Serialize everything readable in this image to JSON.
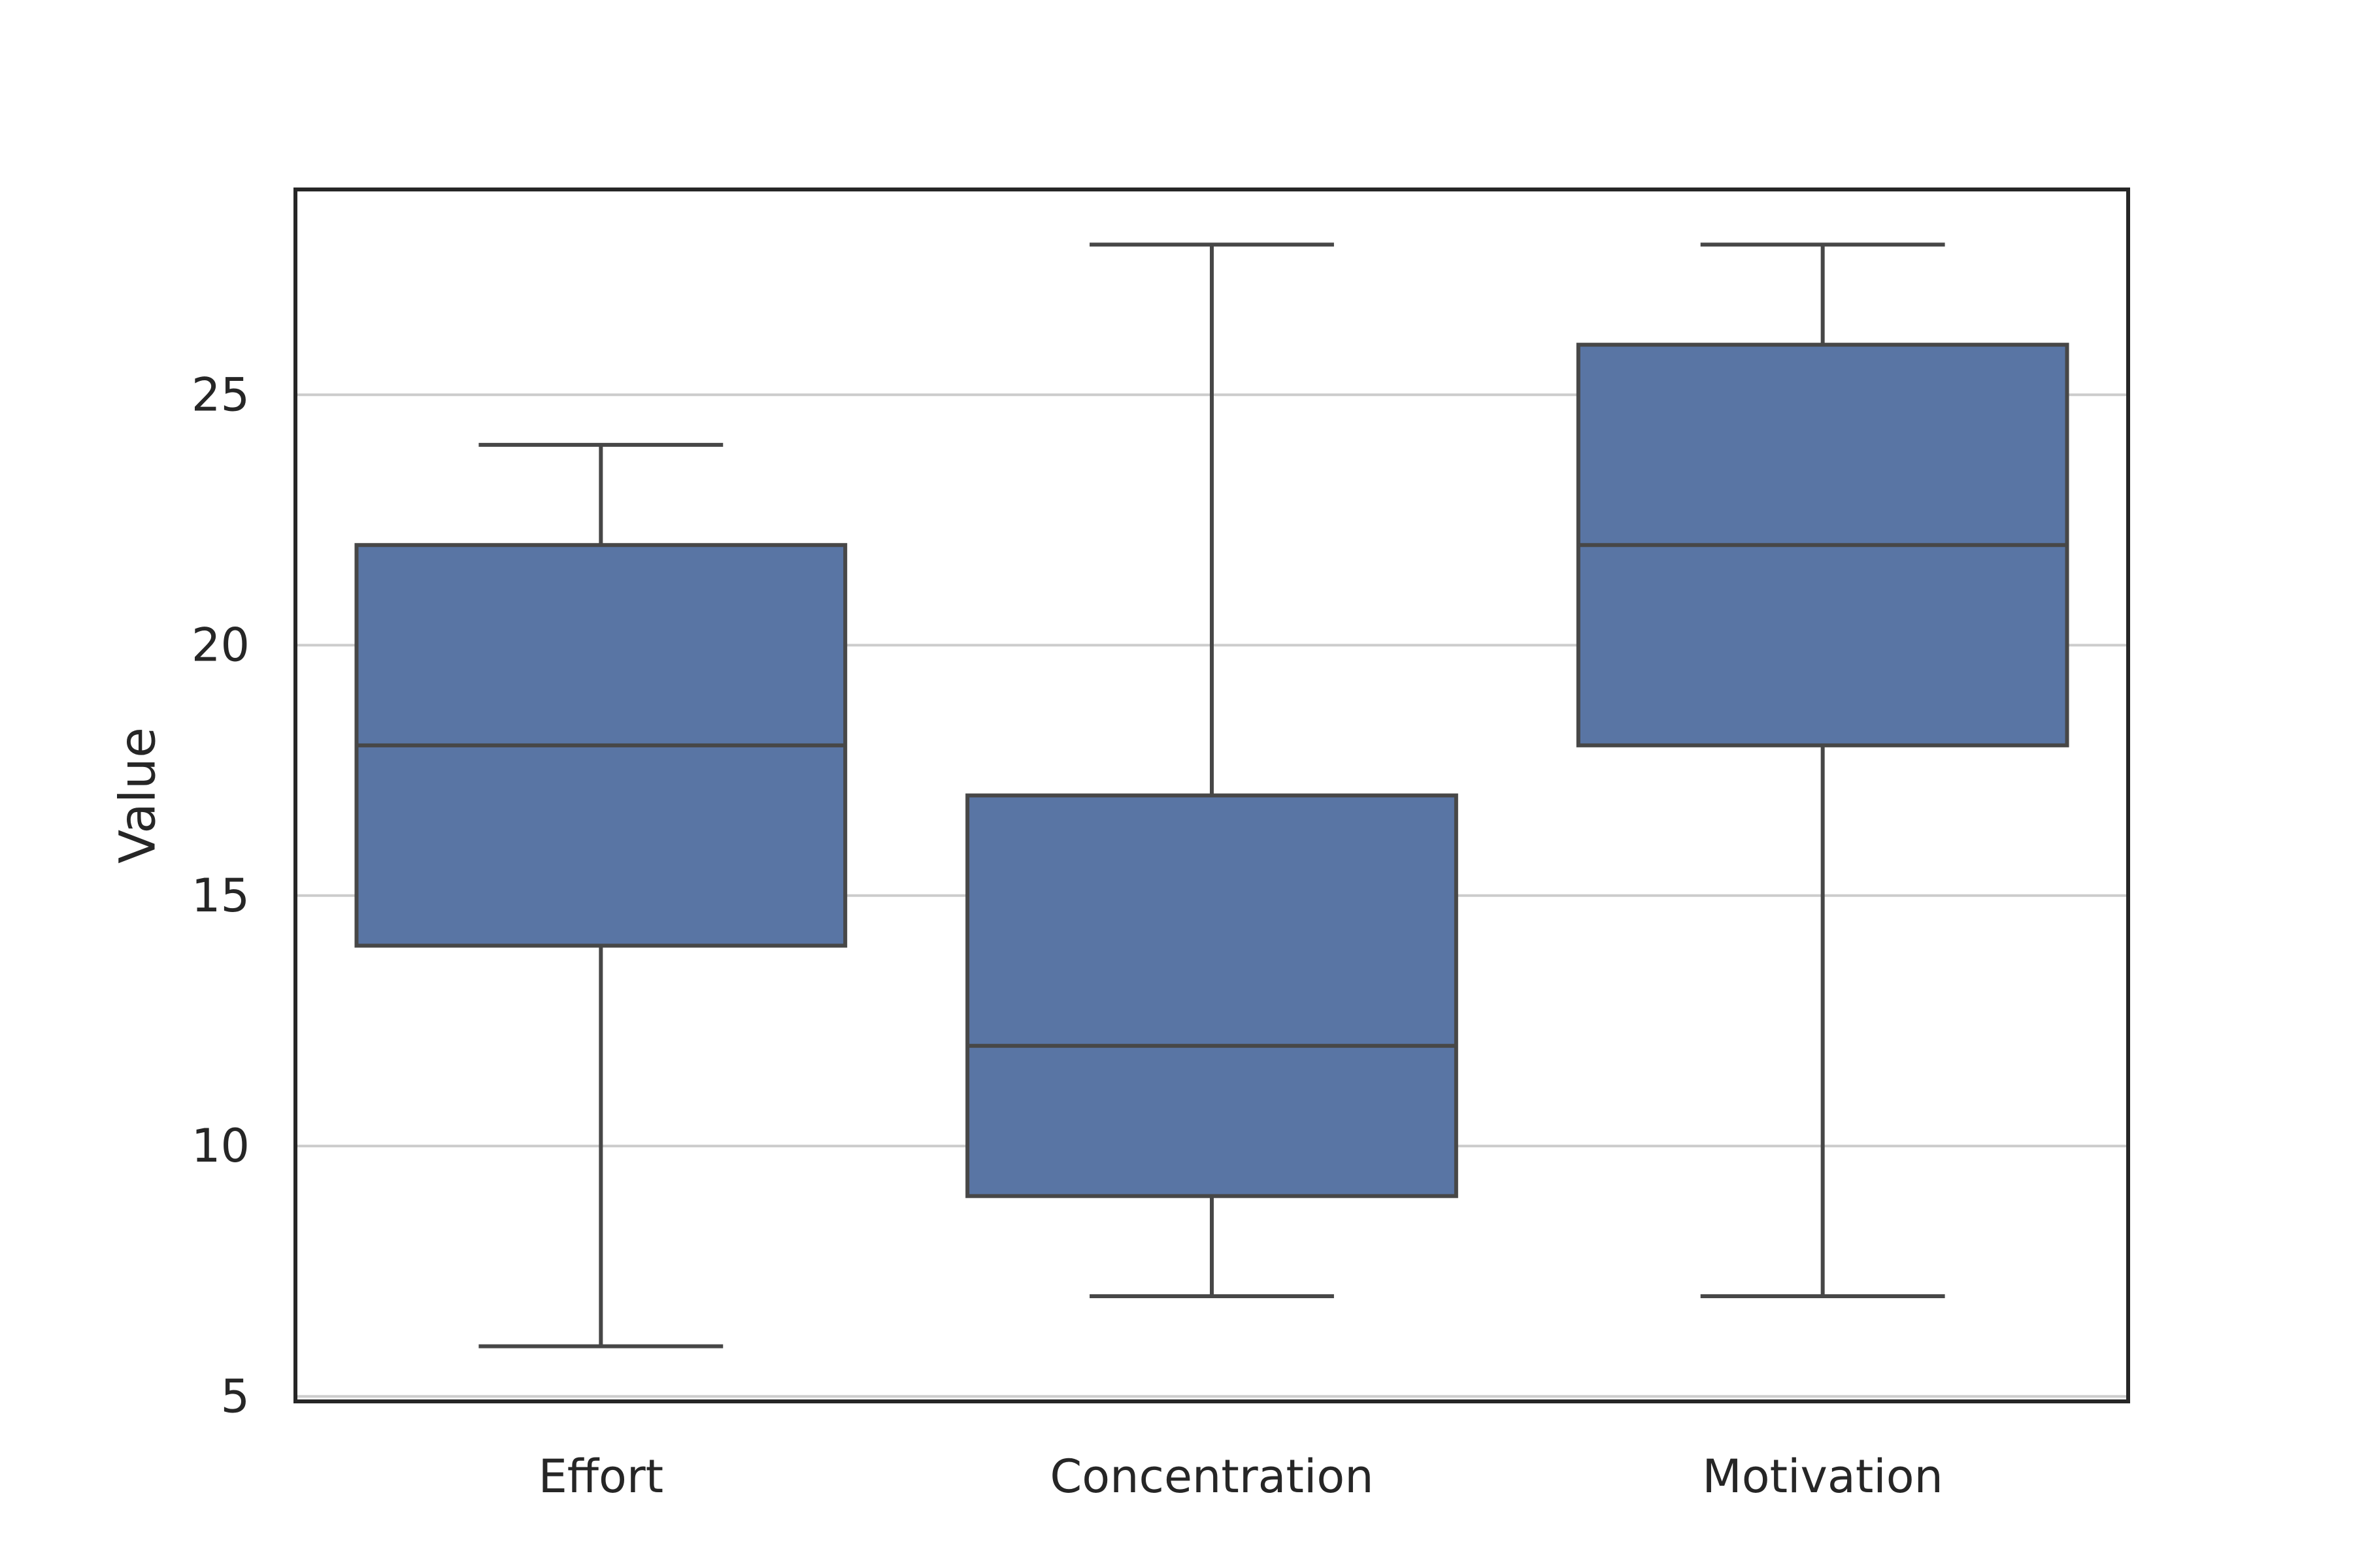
{
  "chart_data": {
    "type": "box",
    "title": "",
    "xlabel": "",
    "ylabel": "Value",
    "categories": [
      "Effort",
      "Concentration",
      "Motivation"
    ],
    "boxes": [
      {
        "category": "Effort",
        "whisker_low": 6,
        "q1": 14,
        "median": 18,
        "q3": 22,
        "whisker_high": 24
      },
      {
        "category": "Concentration",
        "whisker_low": 7,
        "q1": 9,
        "median": 12,
        "q3": 17,
        "whisker_high": 28
      },
      {
        "category": "Motivation",
        "whisker_low": 7,
        "q1": 18,
        "median": 22,
        "q3": 26,
        "whisker_high": 28
      }
    ],
    "ylim": [
      4.9,
      29.1
    ],
    "yticks": [
      5,
      10,
      15,
      20,
      25
    ],
    "ytick_labels": [
      "5",
      "10",
      "15",
      "20",
      "25"
    ],
    "grid": "horizontal",
    "colors": {
      "box_fill": "#5975a4",
      "box_edge": "#474747",
      "grid": "#cccccc",
      "frame": "#262626",
      "text": "#262626"
    }
  }
}
